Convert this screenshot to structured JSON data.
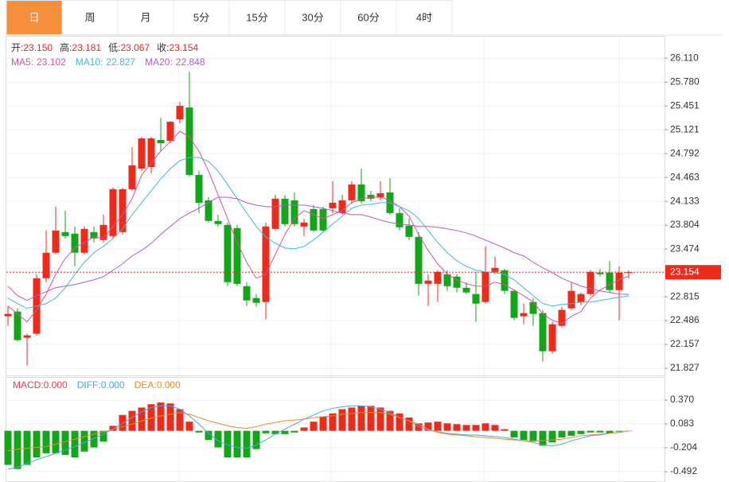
{
  "tabs": [
    "日",
    "周",
    "月",
    "5分",
    "15分",
    "30分",
    "60分",
    "4时"
  ],
  "active_tab": 0,
  "chart_data": [
    {
      "type": "candlestick",
      "info": [
        {
          "label": "开:",
          "value": "23.150"
        },
        {
          "label": "高:",
          "value": "23.181"
        },
        {
          "label": "低:",
          "value": "23.067"
        },
        {
          "label": "收:",
          "value": "23.154"
        }
      ],
      "up_color": "#ee2a1b",
      "down_color": "#13a51a",
      "ylim": [
        21.75,
        26.42
      ],
      "yticks": [
        {
          "value": 26.11,
          "label": "26.110"
        },
        {
          "value": 25.78,
          "label": "25.780"
        },
        25.451,
        25.121,
        24.792,
        24.463,
        24.133,
        23.804,
        23.474,
        22.815,
        22.486,
        22.157,
        21.827
      ],
      "grid": true,
      "last_price": 23.154,
      "ohlc": {
        "open": [
          22.545,
          22.611,
          22.249,
          22.304,
          23.071,
          23.423,
          23.708,
          23.686,
          23.423,
          23.708,
          23.598,
          23.653,
          23.708,
          24.3,
          24.585,
          24.607,
          24.98,
          24.969,
          25.265,
          25.43,
          24.498,
          24.147,
          23.862,
          23.807,
          23.763,
          22.961,
          22.797,
          22.742,
          23.752,
          24.169,
          24.147,
          23.785,
          24.026,
          24.026,
          24.037,
          23.971,
          24.147,
          24.366,
          24.223,
          24.19,
          24.256,
          23.971,
          23.796,
          23.642,
          22.994,
          22.994,
          23.126,
          23.093,
          22.939,
          22.852,
          22.742,
          23.159,
          23.181,
          22.896,
          22.545,
          22.742,
          22.589,
          22.062,
          22.413,
          22.655,
          22.742,
          22.852,
          23.148,
          23.148,
          22.907,
          23.15
        ],
        "high": [
          22.687,
          22.655,
          22.304,
          23.126,
          23.73,
          24.059,
          24.004,
          23.785,
          23.785,
          23.785,
          23.949,
          24.322,
          24.322,
          24.882,
          25.024,
          25.024,
          25.287,
          25.243,
          25.507,
          25.924,
          24.552,
          24.19,
          23.949,
          23.84,
          23.807,
          23.016,
          22.852,
          23.84,
          24.223,
          24.223,
          24.256,
          23.895,
          24.081,
          24.059,
          24.41,
          24.223,
          24.41,
          24.585,
          24.278,
          24.41,
          24.454,
          24.037,
          23.895,
          23.708,
          23.126,
          23.181,
          23.181,
          23.126,
          23.016,
          23.159,
          23.51,
          23.368,
          23.203,
          22.918,
          22.72,
          22.797,
          22.633,
          22.468,
          22.676,
          23.016,
          22.874,
          23.181,
          23.203,
          23.313,
          23.236,
          23.181
        ],
        "low": [
          22.413,
          22.194,
          21.865,
          22.282,
          23.016,
          23.401,
          23.62,
          23.236,
          23.401,
          23.565,
          23.565,
          23.62,
          23.675,
          24.278,
          24.552,
          24.519,
          24.827,
          24.936,
          25.211,
          24.476,
          23.971,
          23.84,
          23.785,
          22.961,
          22.961,
          22.687,
          22.676,
          22.501,
          23.73,
          23.785,
          23.785,
          23.653,
          23.708,
          23.708,
          23.971,
          23.949,
          24.103,
          24.103,
          24.136,
          24.147,
          23.949,
          23.73,
          23.598,
          22.83,
          22.687,
          22.742,
          22.896,
          22.874,
          22.852,
          22.468,
          22.72,
          23.126,
          22.852,
          22.49,
          22.435,
          22.413,
          21.919,
          22.029,
          22.391,
          22.633,
          22.698,
          22.83,
          23.093,
          22.874,
          22.49,
          23.067
        ],
        "close": [
          22.578,
          22.216,
          22.282,
          23.071,
          23.423,
          23.73,
          23.653,
          23.423,
          23.752,
          23.62,
          23.807,
          24.3,
          24.3,
          24.629,
          25.002,
          25.002,
          24.936,
          25.232,
          25.452,
          24.498,
          24.113,
          23.862,
          23.818,
          23.016,
          22.994,
          22.764,
          22.731,
          23.785,
          24.169,
          23.818,
          23.818,
          23.84,
          23.73,
          23.73,
          24.114,
          24.147,
          24.366,
          24.136,
          24.169,
          24.245,
          23.971,
          23.774,
          23.642,
          22.994,
          23.038,
          23.159,
          22.961,
          22.939,
          22.874,
          22.72,
          23.159,
          23.214,
          22.896,
          22.523,
          22.589,
          22.578,
          22.062,
          22.435,
          22.633,
          22.896,
          22.852,
          23.159,
          23.126,
          22.907,
          23.148,
          23.154
        ]
      },
      "series": [
        {
          "name": "MA5:",
          "current": 23.102,
          "color": "#e0509a",
          "values": [
            22.687,
            22.578,
            22.468,
            22.633,
            22.852,
            23.126,
            23.346,
            23.488,
            23.565,
            23.642,
            23.62,
            23.785,
            23.949,
            24.169,
            24.498,
            24.662,
            24.827,
            24.958,
            25.101,
            25.024,
            24.827,
            24.552,
            24.223,
            23.895,
            23.565,
            23.291,
            23.071,
            23.126,
            23.401,
            23.675,
            23.895,
            24.004,
            23.949,
            23.895,
            23.949,
            24.004,
            24.114,
            24.169,
            24.19,
            24.19,
            24.147,
            24.059,
            23.927,
            23.675,
            23.455,
            23.269,
            23.126,
            23.049,
            22.994,
            22.961,
            22.961,
            23.016,
            22.983,
            22.907,
            22.83,
            22.742,
            22.578,
            22.49,
            22.446,
            22.545,
            22.611,
            22.797,
            22.907,
            22.983,
            23.049,
            23.102
          ]
        },
        {
          "name": "MA10:",
          "current": 22.827,
          "color": "#3dbcd6",
          "values": [
            22.797,
            22.72,
            22.655,
            22.687,
            22.72,
            22.797,
            22.939,
            23.126,
            23.291,
            23.423,
            23.51,
            23.62,
            23.752,
            23.949,
            24.114,
            24.278,
            24.443,
            24.585,
            24.695,
            24.739,
            24.739,
            24.684,
            24.552,
            24.366,
            24.169,
            23.971,
            23.785,
            23.642,
            23.554,
            23.488,
            23.477,
            23.51,
            23.598,
            23.708,
            23.818,
            23.927,
            24.037,
            24.081,
            24.092,
            24.114,
            24.114,
            24.059,
            24.004,
            23.895,
            23.73,
            23.565,
            23.423,
            23.313,
            23.236,
            23.181,
            23.159,
            23.148,
            23.126,
            23.049,
            22.939,
            22.83,
            22.72,
            22.687,
            22.709,
            22.72,
            22.742,
            22.742,
            22.764,
            22.786,
            22.808,
            22.827
          ]
        },
        {
          "name": "MA20:",
          "current": 22.848,
          "color": "#b35bc8",
          "values": [
            22.961,
            22.83,
            22.764,
            22.83,
            22.885,
            22.939,
            22.961,
            22.983,
            23.016,
            23.049,
            23.093,
            23.181,
            23.269,
            23.379,
            23.455,
            23.554,
            23.675,
            23.785,
            23.895,
            23.971,
            24.037,
            24.114,
            24.19,
            24.19,
            24.169,
            24.114,
            24.081,
            24.059,
            24.059,
            24.081,
            24.081,
            24.081,
            24.059,
            24.037,
            24.004,
            23.971,
            23.949,
            23.949,
            23.916,
            23.873,
            23.84,
            23.818,
            23.807,
            23.785,
            23.785,
            23.774,
            23.752,
            23.73,
            23.697,
            23.653,
            23.598,
            23.543,
            23.488,
            23.423,
            23.379,
            23.291,
            23.214,
            23.148,
            23.071,
            23.016,
            22.961,
            22.928,
            22.896,
            22.874,
            22.852,
            22.848
          ]
        }
      ]
    },
    {
      "type": "macd",
      "ylim": [
        -0.616,
        0.638
      ],
      "yticks": [
        {
          "value": 0.37,
          "label": "0.370"
        },
        0.083,
        -0.204,
        -0.492
      ],
      "grid": true,
      "histogram": {
        "legend": "MACD:0.000",
        "color": "#e8414a",
        "up_color": "#ee2a1b",
        "down_color": "#13a51a",
        "values": [
          -0.41,
          -0.46,
          -0.41,
          -0.32,
          -0.27,
          -0.27,
          -0.29,
          -0.32,
          -0.25,
          -0.2,
          -0.13,
          0.06,
          0.19,
          0.24,
          0.28,
          0.32,
          0.34,
          0.33,
          0.26,
          0.11,
          -0.02,
          -0.11,
          -0.2,
          -0.32,
          -0.32,
          -0.32,
          -0.22,
          -0.03,
          -0.04,
          -0.04,
          -0.02,
          0.04,
          0.11,
          0.17,
          0.21,
          0.26,
          0.28,
          0.3,
          0.3,
          0.28,
          0.24,
          0.21,
          0.16,
          0.09,
          0.1,
          0.11,
          0.09,
          0.08,
          0.07,
          0.07,
          0.09,
          0.07,
          0.02,
          -0.08,
          -0.11,
          -0.13,
          -0.18,
          -0.14,
          -0.08,
          -0.06,
          -0.04,
          -0.02,
          -0.02,
          -0.03,
          -0.01,
          0
        ]
      },
      "series": [
        {
          "legend": "DIFF:0.000",
          "color": "#4aa6ea",
          "values": [
            -0.46,
            -0.44,
            -0.39,
            -0.35,
            -0.31,
            -0.27,
            -0.23,
            -0.19,
            -0.14,
            -0.09,
            -0.04,
            0.02,
            0.09,
            0.16,
            0.23,
            0.28,
            0.3,
            0.3,
            0.26,
            0.18,
            0.08,
            -0.03,
            -0.12,
            -0.17,
            -0.2,
            -0.21,
            -0.17,
            -0.11,
            -0.04,
            0.02,
            0.08,
            0.14,
            0.19,
            0.24,
            0.27,
            0.29,
            0.3,
            0.3,
            0.29,
            0.26,
            0.22,
            0.16,
            0.12,
            0.05,
            0.01,
            -0.01,
            -0.03,
            -0.04,
            -0.05,
            -0.05,
            -0.06,
            -0.07,
            -0.08,
            -0.1,
            -0.12,
            -0.14,
            -0.17,
            -0.18,
            -0.16,
            -0.12,
            -0.09,
            -0.06,
            -0.05,
            -0.03,
            -0.02,
            0
          ]
        },
        {
          "legend": "DEA:0.000",
          "color": "#f08a2c",
          "values": [
            -0.24,
            -0.22,
            -0.21,
            -0.2,
            -0.19,
            -0.16,
            -0.13,
            -0.1,
            -0.07,
            -0.04,
            -0.01,
            0.02,
            0.05,
            0.08,
            0.12,
            0.15,
            0.18,
            0.2,
            0.22,
            0.2,
            0.16,
            0.12,
            0.09,
            0.06,
            0.04,
            0.03,
            0.05,
            0.08,
            0.1,
            0.12,
            0.13,
            0.14,
            0.16,
            0.17,
            0.18,
            0.2,
            0.21,
            0.22,
            0.22,
            0.22,
            0.2,
            0.16,
            0.12,
            0.08,
            0.02,
            -0.02,
            -0.04,
            -0.05,
            -0.06,
            -0.07,
            -0.08,
            -0.09,
            -0.1,
            -0.11,
            -0.12,
            -0.12,
            -0.12,
            -0.11,
            -0.1,
            -0.08,
            -0.06,
            -0.05,
            -0.04,
            -0.03,
            -0.02,
            0
          ]
        }
      ]
    }
  ]
}
